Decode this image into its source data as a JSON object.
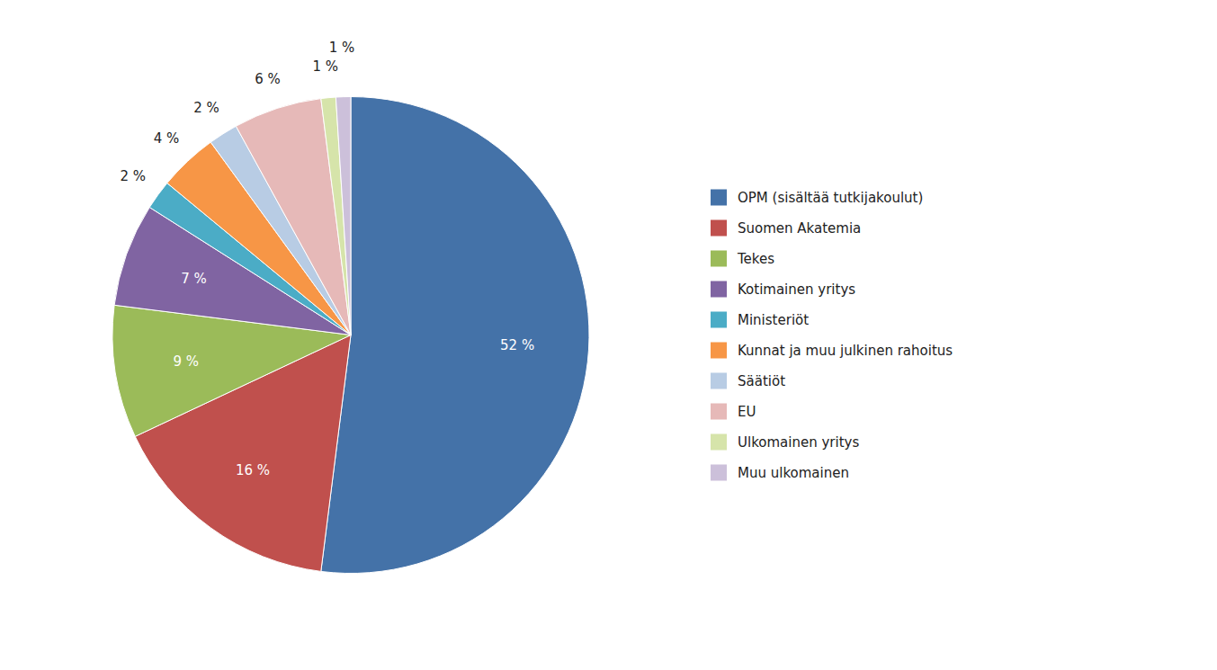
{
  "chart_data": {
    "type": "pie",
    "categories": [
      "OPM (sisältää tutkijakoulut)",
      "Suomen Akatemia",
      "Tekes",
      "Kotimainen yritys",
      "Ministeriöt",
      "Kunnat ja muu julkinen rahoitus",
      "Säätiöt",
      "EU",
      "Ulkomainen yritys",
      "Muu ulkomainen"
    ],
    "values": [
      52,
      16,
      9,
      7,
      2,
      4,
      2,
      6,
      1,
      1
    ],
    "value_labels": [
      "52 %",
      "16 %",
      "9 %",
      "7 %",
      "2 %",
      "4 %",
      "2 %",
      "6 %",
      "1 %",
      "1 %"
    ],
    "colors": [
      "#4472A8",
      "#C0504D",
      "#9BBB59",
      "#8064A2",
      "#4BACC6",
      "#F79646",
      "#B8CCE4",
      "#E6B9B8",
      "#D6E4AA",
      "#CCC0DA"
    ],
    "data_labels": true,
    "legend": "right"
  }
}
